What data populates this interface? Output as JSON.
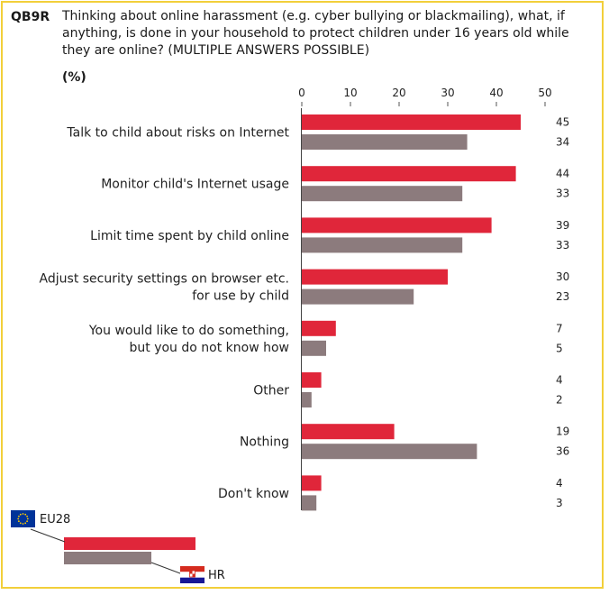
{
  "header": {
    "code": "QB9R",
    "question": "Thinking about online harassment (e.g. cyber bullying or blackmailing), what, if anything, is done in your household to protect children under 16 years old while they are online? (MULTIPLE ANSWERS POSSIBLE)",
    "unit": "(%)"
  },
  "colors": {
    "eu": "#e0263a",
    "hr": "#8c7b7d",
    "border": "#f2cf3a"
  },
  "legend": {
    "eu_label": "EU28",
    "eu_icon": "eu-flag-icon",
    "hr_label": "HR",
    "hr_icon": "croatia-flag-icon"
  },
  "chart_data": {
    "type": "bar",
    "orientation": "horizontal",
    "categories": [
      [
        "Talk to child about risks on Internet"
      ],
      [
        "Monitor child's Internet usage"
      ],
      [
        "Limit time spent by child online"
      ],
      [
        "Adjust security settings on browser etc.",
        "for use by child"
      ],
      [
        "You would like to do something,",
        "but you do not know how"
      ],
      [
        "Other"
      ],
      [
        "Nothing"
      ],
      [
        "Don't know"
      ]
    ],
    "series": [
      {
        "name": "EU28",
        "values": [
          45,
          44,
          39,
          30,
          7,
          4,
          19,
          4
        ]
      },
      {
        "name": "HR",
        "values": [
          34,
          33,
          33,
          23,
          5,
          2,
          36,
          3
        ]
      }
    ],
    "xlim": [
      0,
      50
    ],
    "xticks": [
      0,
      10,
      20,
      30,
      40,
      50
    ],
    "grid": false,
    "legend_position": "bottom-left"
  }
}
